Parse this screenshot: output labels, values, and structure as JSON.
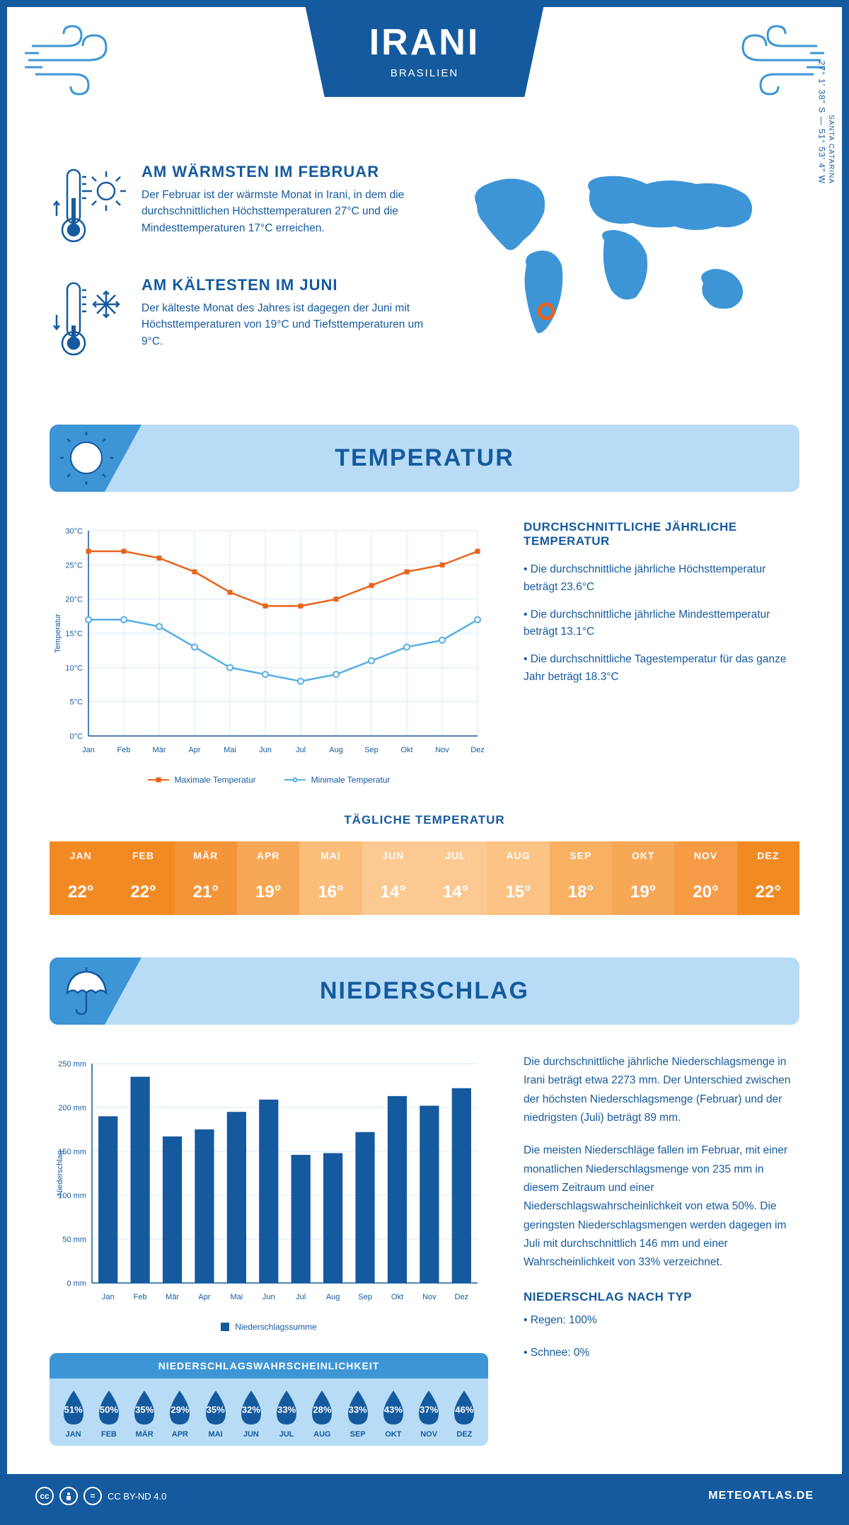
{
  "header": {
    "title": "IRANI",
    "subtitle": "BRASILIEN"
  },
  "coords": "27° 1' 38\" S — 51° 53' 4\" W",
  "region": "SANTA CATARINA",
  "warmest": {
    "title": "AM WÄRMSTEN IM FEBRUAR",
    "text": "Der Februar ist der wärmste Monat in Irani, in dem die durchschnittlichen Höchsttemperaturen 27°C und die Mindesttemperaturen 17°C erreichen."
  },
  "coldest": {
    "title": "AM KÄLTESTEN IM JUNI",
    "text": "Der kälteste Monat des Jahres ist dagegen der Juni mit Höchsttemperaturen von 19°C und Tiefsttemperaturen um 9°C."
  },
  "temp_section_title": "TEMPERATUR",
  "temp_chart": {
    "type": "line",
    "months": [
      "Jan",
      "Feb",
      "Mär",
      "Apr",
      "Mai",
      "Jun",
      "Jul",
      "Aug",
      "Sep",
      "Okt",
      "Nov",
      "Dez"
    ],
    "max_values": [
      27,
      27,
      26,
      24,
      21,
      19,
      19,
      20,
      22,
      24,
      25,
      27
    ],
    "min_values": [
      17,
      17,
      16,
      13,
      10,
      9,
      8,
      9,
      11,
      13,
      14,
      17
    ],
    "max_color": "#e8641b",
    "min_color": "#56aee3",
    "ylabel": "Temperatur",
    "ylim": [
      0,
      30
    ],
    "ytick_step": 5,
    "grid_color": "#d7e8f4",
    "axis_color": "#155a9e",
    "legend_max": "Maximale Temperatur",
    "legend_min": "Minimale Temperatur"
  },
  "temp_info": {
    "title": "DURCHSCHNITTLICHE JÄHRLICHE TEMPERATUR",
    "b1": "• Die durchschnittliche jährliche Höchsttemperatur beträgt 23.6°C",
    "b2": "• Die durchschnittliche jährliche Mindesttemperatur beträgt 13.1°C",
    "b3": "• Die durchschnittliche Tagestemperatur für das ganze Jahr beträgt 18.3°C"
  },
  "daily_temp": {
    "title": "TÄGLICHE TEMPERATUR",
    "months": [
      "JAN",
      "FEB",
      "MÄR",
      "APR",
      "MAI",
      "JUN",
      "JUL",
      "AUG",
      "SEP",
      "OKT",
      "NOV",
      "DEZ"
    ],
    "values": [
      "22°",
      "22°",
      "21°",
      "19°",
      "16°",
      "14°",
      "14°",
      "15°",
      "18°",
      "19°",
      "20°",
      "22°"
    ],
    "colors": [
      "#f28a24",
      "#f28a24",
      "#f4953a",
      "#f7a856",
      "#fabd7a",
      "#fcc992",
      "#fcc992",
      "#fbc385",
      "#f8b062",
      "#f7a856",
      "#f69b46",
      "#f28a24"
    ]
  },
  "precip_section_title": "NIEDERSCHLAG",
  "precip_chart": {
    "type": "bar",
    "months": [
      "Jan",
      "Feb",
      "Mär",
      "Apr",
      "Mai",
      "Jun",
      "Jul",
      "Aug",
      "Sep",
      "Okt",
      "Nov",
      "Dez"
    ],
    "values": [
      190,
      235,
      167,
      175,
      195,
      209,
      146,
      148,
      172,
      213,
      202,
      222
    ],
    "bar_color": "#155a9e",
    "ylabel": "Niederschlag",
    "ylim": [
      0,
      250
    ],
    "ytick_step": 50,
    "grid_color": "#d7e8f4",
    "axis_color": "#155a9e",
    "legend": "Niederschlagssumme"
  },
  "precip_text": {
    "p1": "Die durchschnittliche jährliche Niederschlagsmenge in Irani beträgt etwa 2273 mm. Der Unterschied zwischen der höchsten Niederschlagsmenge (Februar) und der niedrigsten (Juli) beträgt 89 mm.",
    "p2": "Die meisten Niederschläge fallen im Februar, mit einer monatlichen Niederschlagsmenge von 235 mm in diesem Zeitraum und einer Niederschlagswahrscheinlichkeit von etwa 50%. Die geringsten Niederschlagsmengen werden dagegen im Juli mit durchschnittlich 146 mm und einer Wahrscheinlichkeit von 33% verzeichnet.",
    "type_title": "NIEDERSCHLAG NACH TYP",
    "t1": "• Regen: 100%",
    "t2": "• Schnee: 0%"
  },
  "prob": {
    "title": "NIEDERSCHLAGSWAHRSCHEINLICHKEIT",
    "months": [
      "JAN",
      "FEB",
      "MÄR",
      "APR",
      "MAI",
      "JUN",
      "JUL",
      "AUG",
      "SEP",
      "OKT",
      "NOV",
      "DEZ"
    ],
    "values": [
      "51%",
      "50%",
      "35%",
      "29%",
      "35%",
      "32%",
      "33%",
      "28%",
      "33%",
      "43%",
      "37%",
      "46%"
    ],
    "drop_color": "#155a9e"
  },
  "footer": {
    "license": "CC BY-ND 4.0",
    "site": "METEOATLAS.DE"
  }
}
